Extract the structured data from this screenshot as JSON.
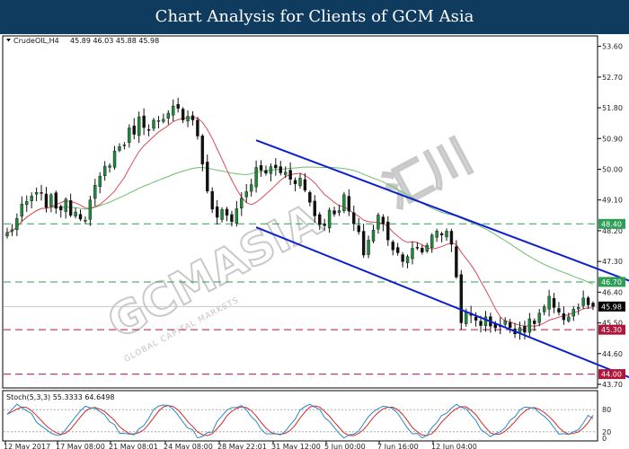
{
  "banner": {
    "title": "Chart Analysis for Clients of GCM Asia"
  },
  "header": {
    "symbol": "CrudeOIL,H4",
    "ohlc": "45.89 46.03 45.88 45.98"
  },
  "watermark": {
    "brand": "GCMASIA",
    "cn": "汇川",
    "tagline": "GLOBAL CAPITAL MARKETS"
  },
  "colors": {
    "banner": "#0f3b5f",
    "bull": "#1f8a3a",
    "bear": "#111111",
    "ma_fast": "#d94c5a",
    "ma_slow": "#6dbf6d",
    "channel": "#0b1fcf",
    "support": "#b0163a",
    "resistance": "#2e9e57",
    "stoch_k": "#2a88c7",
    "stoch_d": "#d22a2a"
  },
  "chart_data": {
    "type": "candlestick",
    "symbol": "CrudeOIL,H4",
    "ylim": [
      43.7,
      53.8
    ],
    "y_ticks": [
      53.6,
      52.7,
      51.8,
      50.9,
      50.0,
      49.1,
      48.2,
      47.3,
      46.4,
      45.5,
      44.6,
      43.7
    ],
    "x_ticks": [
      "12 May 2017",
      "17 May 08:00",
      "21 May 08:01",
      "24 May 08:00",
      "28 May 22:01",
      "31 May 12:00",
      "5 Jun 00:00",
      "7 Jun 16:00",
      "12 Jun 04:00"
    ],
    "anchors": [
      [
        0,
        48.1
      ],
      [
        5,
        49.2
      ],
      [
        12,
        48.9
      ],
      [
        16,
        48.7
      ],
      [
        21,
        50.3
      ],
      [
        27,
        51.4
      ],
      [
        32,
        51.3
      ],
      [
        34,
        51.7
      ],
      [
        38,
        51.6
      ],
      [
        40,
        50.2
      ],
      [
        42,
        48.7
      ],
      [
        46,
        48.6
      ],
      [
        51,
        49.9
      ],
      [
        55,
        50.0
      ],
      [
        60,
        49.7
      ],
      [
        64,
        48.4
      ],
      [
        69,
        49.1
      ],
      [
        73,
        47.6
      ],
      [
        76,
        48.6
      ],
      [
        80,
        47.5
      ],
      [
        85,
        47.6
      ],
      [
        88,
        48.3
      ],
      [
        91,
        47.9
      ],
      [
        93,
        45.7
      ],
      [
        99,
        45.5
      ],
      [
        104,
        45.4
      ],
      [
        107,
        45.4
      ],
      [
        111,
        46.1
      ],
      [
        113,
        45.6
      ],
      [
        118,
        46.1
      ],
      [
        120,
        45.95
      ]
    ],
    "levels": [
      {
        "label": "48.40",
        "value": 48.4,
        "kind": "resistance"
      },
      {
        "label": "46.70",
        "value": 46.7,
        "kind": "resistance"
      },
      {
        "label": "45.98",
        "value": 45.98,
        "kind": "price"
      },
      {
        "label": "45.30",
        "value": 45.3,
        "kind": "support"
      },
      {
        "label": "44.00",
        "value": 44.0,
        "kind": "support"
      }
    ],
    "channel": {
      "upper": [
        [
          51,
          50.85
        ],
        [
          141,
          46.0
        ]
      ],
      "lower": [
        [
          51,
          48.3
        ],
        [
          131,
          43.7
        ]
      ]
    },
    "stochastic": {
      "label": "Stoch(5,3,3) 55.3333 64.6498",
      "ylim": [
        0,
        100
      ],
      "y_ticks": [
        "80",
        "20",
        "0"
      ],
      "levels": [
        80,
        20
      ],
      "k_last": 55.3333,
      "d_last": 64.6498
    }
  }
}
